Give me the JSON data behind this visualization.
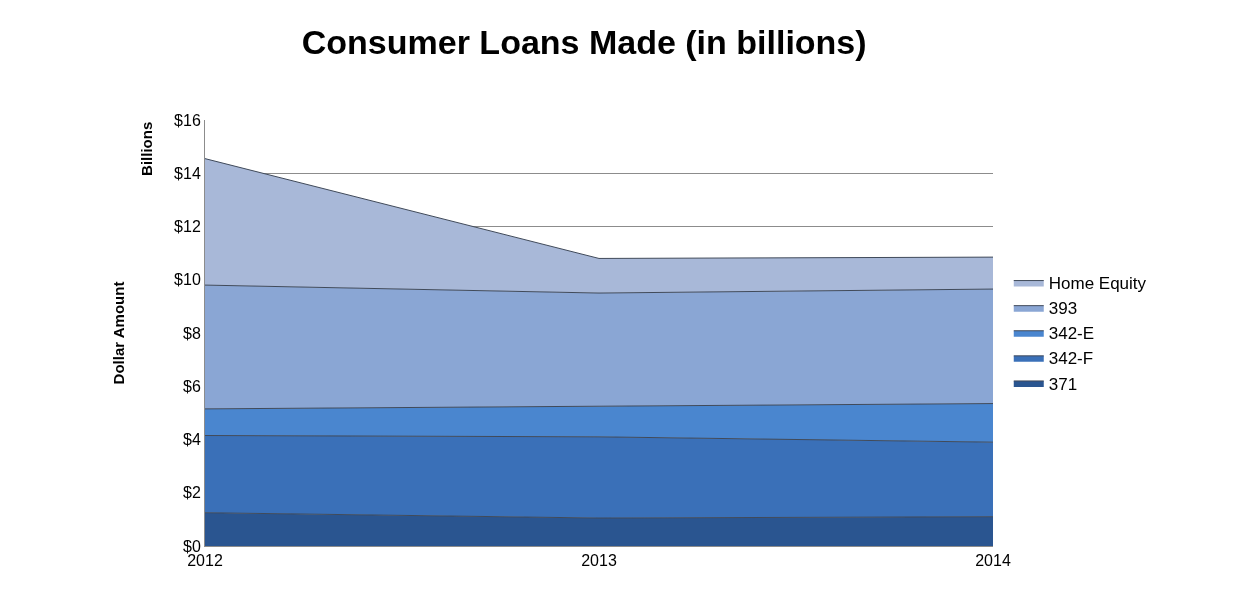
{
  "chart_data": {
    "type": "area",
    "title": "Consumer Loans Made (in billions)",
    "ylabel": "Dollar Amount",
    "annotations": [
      "Billions"
    ],
    "categories": [
      "2012",
      "2013",
      "2014"
    ],
    "stacked": true,
    "series": [
      {
        "name": "371",
        "color": "#2a5590",
        "values": [
          1.25,
          1.05,
          1.1
        ]
      },
      {
        "name": "342-F",
        "color": "#3a70b8",
        "values": [
          2.9,
          3.05,
          2.8
        ]
      },
      {
        "name": "342-E",
        "color": "#4a86cf",
        "values": [
          1.0,
          1.15,
          1.45
        ]
      },
      {
        "name": "393",
        "color": "#8aa6d4",
        "values": [
          4.65,
          4.25,
          4.3
        ]
      },
      {
        "name": "Home Equity",
        "color": "#a8b8d8",
        "values": [
          4.75,
          1.3,
          1.2
        ]
      }
    ],
    "ylim": [
      0,
      16
    ],
    "yticks": [
      {
        "value": 0,
        "label": "$0"
      },
      {
        "value": 2,
        "label": "$2"
      },
      {
        "value": 4,
        "label": "$4"
      },
      {
        "value": 6,
        "label": "$6"
      },
      {
        "value": 8,
        "label": "$8"
      },
      {
        "value": 10,
        "label": "$10"
      },
      {
        "value": 12,
        "label": "$12"
      },
      {
        "value": 14,
        "label": "$14"
      },
      {
        "value": 16,
        "label": "$16"
      }
    ],
    "grid": "y",
    "legend": "right"
  }
}
